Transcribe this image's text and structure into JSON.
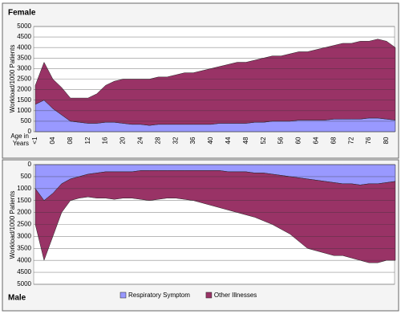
{
  "chart_data": [
    {
      "type": "stacked-area",
      "title": "Female",
      "y_label": "Workload/1000 Patients",
      "x_label": "Age in Years",
      "categories": [
        "<1",
        null,
        "04",
        null,
        "08",
        null,
        "12",
        null,
        "16",
        null,
        "20",
        null,
        "24",
        null,
        "28",
        null,
        "32",
        null,
        "36",
        null,
        "40",
        null,
        "44",
        null,
        "48",
        null,
        "52",
        null,
        "56",
        null,
        "60",
        null,
        "64",
        null,
        "68",
        null,
        "72",
        null,
        "76",
        null,
        "80",
        null
      ],
      "series": [
        {
          "color": "#9999ff",
          "values": [
            1300,
            1500,
            1100,
            800,
            500,
            450,
            400,
            400,
            450,
            450,
            400,
            350,
            350,
            300,
            350,
            350,
            350,
            350,
            350,
            350,
            350,
            400,
            400,
            400,
            400,
            450,
            450,
            500,
            500,
            500,
            550,
            550,
            550,
            550,
            600,
            600,
            600,
            600,
            650,
            650,
            600,
            550
          ]
        },
        {
          "color": "#993366",
          "values": [
            900,
            1800,
            1400,
            1300,
            1100,
            1150,
            1200,
            1400,
            1750,
            1950,
            2100,
            2150,
            2150,
            2200,
            2250,
            2250,
            2350,
            2450,
            2450,
            2550,
            2650,
            2700,
            2800,
            2900,
            2900,
            2950,
            3050,
            3100,
            3100,
            3200,
            3250,
            3250,
            3350,
            3450,
            3500,
            3600,
            3600,
            3700,
            3650,
            3750,
            3700,
            3450
          ]
        }
      ],
      "ylim": [
        0,
        5000
      ],
      "yticks": [
        0,
        500,
        1000,
        1500,
        2000,
        2500,
        3000,
        3500,
        4000,
        4500,
        5000
      ],
      "grid": true
    },
    {
      "type": "stacked-area",
      "inverted": true,
      "title": "Male",
      "y_label": "Workload/1000 Patients",
      "series": [
        {
          "name": "Respiratory Symptom",
          "color": "#9999ff",
          "values": [
            1000,
            1500,
            1200,
            800,
            600,
            500,
            400,
            350,
            300,
            300,
            300,
            300,
            250,
            250,
            250,
            250,
            250,
            250,
            250,
            250,
            250,
            250,
            300,
            300,
            300,
            350,
            350,
            400,
            450,
            500,
            550,
            600,
            650,
            700,
            750,
            800,
            800,
            850,
            800,
            800,
            750,
            700
          ]
        },
        {
          "name": "Other Illnesses",
          "color": "#993366",
          "values": [
            1500,
            2500,
            1800,
            1200,
            900,
            900,
            950,
            1050,
            1100,
            1150,
            1100,
            1100,
            1200,
            1250,
            1200,
            1150,
            1150,
            1200,
            1250,
            1350,
            1450,
            1550,
            1600,
            1700,
            1800,
            1850,
            2000,
            2100,
            2250,
            2400,
            2650,
            2900,
            2950,
            3000,
            3050,
            3000,
            3100,
            3150,
            3300,
            3300,
            3250,
            3300
          ]
        }
      ],
      "ylim": [
        0,
        5000
      ],
      "yticks": [
        0,
        500,
        1000,
        1500,
        2000,
        2500,
        3000,
        3500,
        4000,
        4500,
        5000
      ],
      "grid": true,
      "legend": "bottom"
    }
  ]
}
